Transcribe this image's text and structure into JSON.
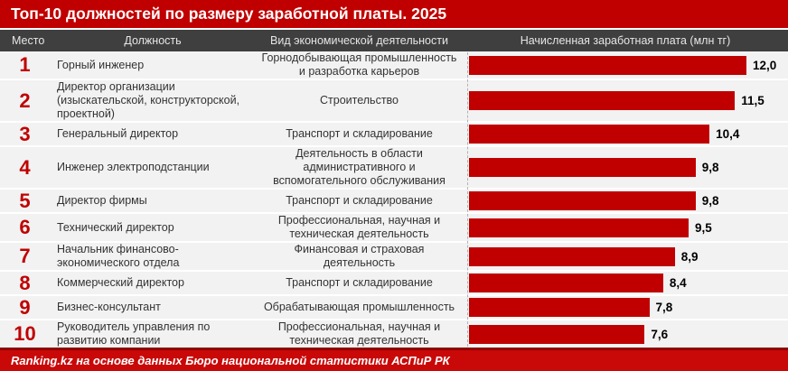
{
  "title": "Топ-10 должностей по размеру заработной платы. 2025",
  "columns": {
    "rank": "Место",
    "position": "Должность",
    "activity": "Вид экономической деятельности",
    "salary": "Начисленная заработная плата (млн тг)"
  },
  "footer": "Ranking.kz на основе данных Бюро национальной статистики АСПиР РК",
  "colors": {
    "accent_red": "#c00000",
    "header_gray": "#3f3f3f",
    "row_bg": "#f2f2f2",
    "bar_red": "#c00000",
    "footer_red": "#c90808",
    "value_text": "#000000"
  },
  "chart_data": {
    "type": "bar",
    "orientation": "horizontal",
    "title": "Топ-10 должностей по размеру заработной платы. 2025",
    "value_axis_label": "Начисленная заработная плата (млн тг)",
    "xlim": [
      0,
      12
    ],
    "grid": false,
    "legend": false,
    "rows": [
      {
        "rank": "1",
        "position": "Горный инженер",
        "activity": "Горнодобывающая промышленность и разработка карьеров",
        "value": 12.0,
        "label": "12,0"
      },
      {
        "rank": "2",
        "position": "Директор организации (изыскательской, конструкторской, проектной)",
        "activity": "Строительство",
        "value": 11.5,
        "label": "11,5"
      },
      {
        "rank": "3",
        "position": "Генеральный директор",
        "activity": "Транспорт и складирование",
        "value": 10.4,
        "label": "10,4"
      },
      {
        "rank": "4",
        "position": "Инженер электроподстанции",
        "activity": "Деятельность в области административного и вспомогательного обслуживания",
        "value": 9.8,
        "label": "9,8"
      },
      {
        "rank": "5",
        "position": "Директор фирмы",
        "activity": "Транспорт и складирование",
        "value": 9.8,
        "label": "9,8"
      },
      {
        "rank": "6",
        "position": "Технический директор",
        "activity": "Профессиональная, научная и техническая деятельность",
        "value": 9.5,
        "label": "9,5"
      },
      {
        "rank": "7",
        "position": "Начальник финансово-экономического отдела",
        "activity": "Финансовая и страховая деятельность",
        "value": 8.9,
        "label": "8,9"
      },
      {
        "rank": "8",
        "position": "Коммерческий директор",
        "activity": "Транспорт и складирование",
        "value": 8.4,
        "label": "8,4"
      },
      {
        "rank": "9",
        "position": "Бизнес-консультант",
        "activity": "Обрабатывающая промышленность",
        "value": 7.8,
        "label": "7,8"
      },
      {
        "rank": "10",
        "position": "Руководитель управления по развитию компании",
        "activity": "Профессиональная, научная и техническая деятельность",
        "value": 7.6,
        "label": "7,6"
      }
    ]
  }
}
